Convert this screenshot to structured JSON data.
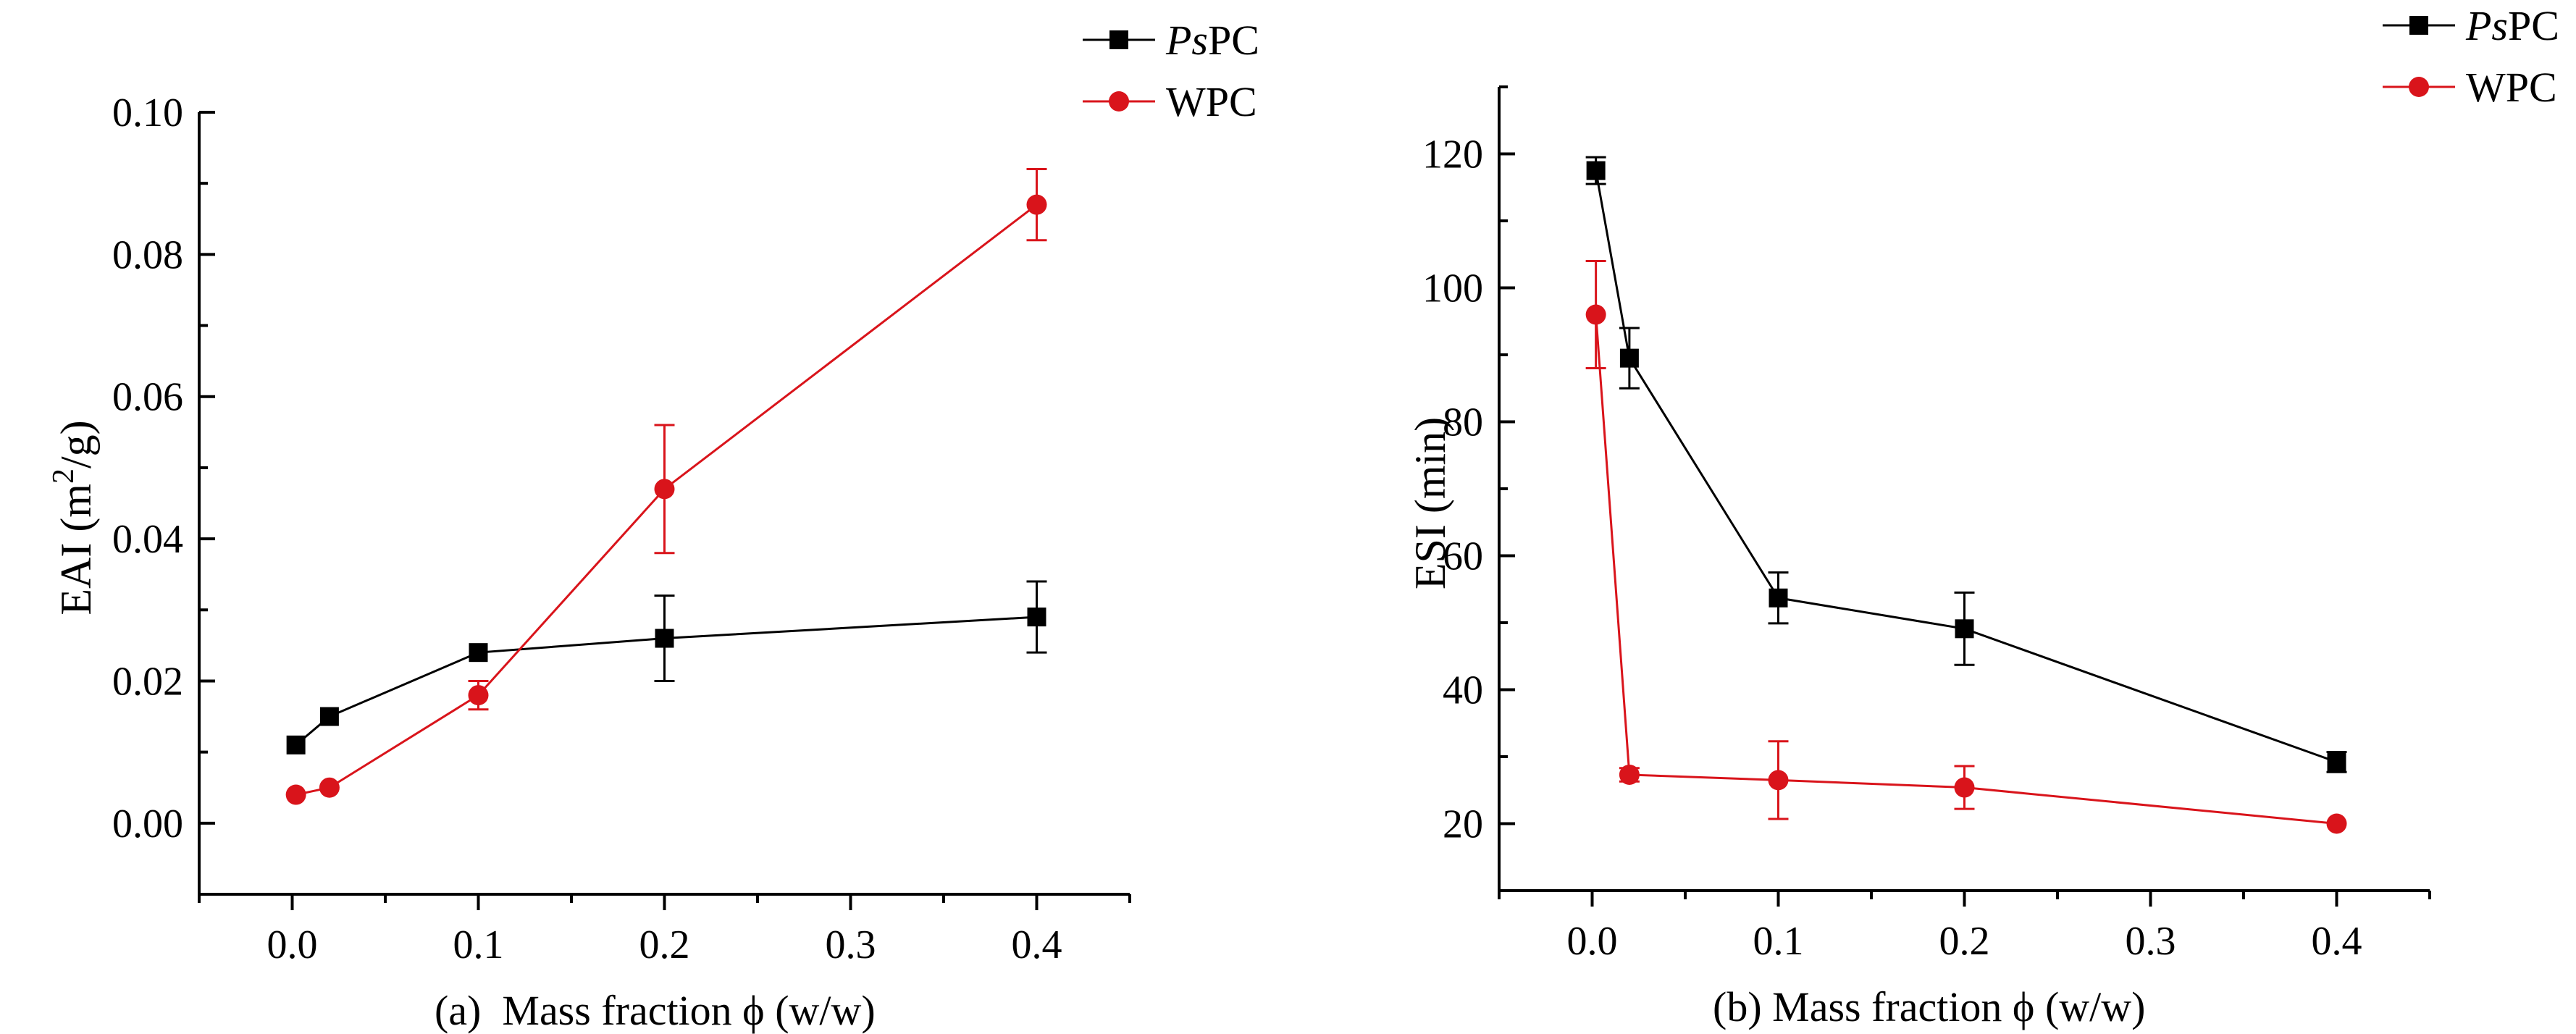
{
  "chart_data": [
    {
      "type": "line",
      "caption": "(a)  Mass fraction ϕ (w/w)",
      "xlabel": "Mass fraction ϕ (w/w)",
      "ylabel": "EAI (m2/g)",
      "ylabel_parts": {
        "main": "EAI (m",
        "sup": "2",
        "tail": "/g)"
      },
      "xlim": [
        -0.05,
        0.45
      ],
      "ylim": [
        -0.01,
        0.1
      ],
      "xticks": [
        0.0,
        0.1,
        0.2,
        0.3,
        0.4
      ],
      "xtick_labels": [
        "0.0",
        "0.1",
        "0.2",
        "0.3",
        "0.4"
      ],
      "yticks": [
        0.0,
        0.02,
        0.04,
        0.06,
        0.08,
        0.1
      ],
      "ytick_labels": [
        "0.00",
        "0.02",
        "0.04",
        "0.06",
        "0.08",
        "0.10"
      ],
      "legend_position": "top-right",
      "series": [
        {
          "name": "PsPC",
          "name_parts": {
            "italic": "Ps",
            "normal": "PC"
          },
          "color": "#000000",
          "marker": "square",
          "x": [
            0.002,
            0.02,
            0.1,
            0.2,
            0.4
          ],
          "y": [
            0.011,
            0.015,
            0.024,
            0.026,
            0.029
          ],
          "err": [
            0,
            0,
            0,
            0.006,
            0.005
          ]
        },
        {
          "name": "WPC",
          "color": "#d9141b",
          "marker": "circle",
          "x": [
            0.002,
            0.02,
            0.1,
            0.2,
            0.4
          ],
          "y": [
            0.004,
            0.005,
            0.018,
            0.047,
            0.087
          ],
          "err": [
            0,
            0,
            0.002,
            0.009,
            0.005
          ]
        }
      ]
    },
    {
      "type": "line",
      "caption": "(b) Mass fraction ϕ (w/w)",
      "xlabel": "Mass fraction ϕ (w/w)",
      "ylabel": "ESI (min)",
      "xlim": [
        -0.05,
        0.45
      ],
      "ylim": [
        10,
        130
      ],
      "xticks": [
        0.0,
        0.1,
        0.2,
        0.3,
        0.4
      ],
      "xtick_labels": [
        "0.0",
        "0.1",
        "0.2",
        "0.3",
        "0.4"
      ],
      "yticks": [
        20,
        40,
        60,
        80,
        100,
        120
      ],
      "ytick_labels": [
        "20",
        "40",
        "60",
        "80",
        "100",
        "120"
      ],
      "legend_position": "top-right",
      "series": [
        {
          "name": "PsPC",
          "name_parts": {
            "italic": "Ps",
            "normal": "PC"
          },
          "color": "#000000",
          "marker": "square",
          "x": [
            0.002,
            0.02,
            0.1,
            0.2,
            0.4
          ],
          "y": [
            117.5,
            89.5,
            53.7,
            49.1,
            29.2
          ],
          "err": [
            2,
            4.5,
            3.8,
            5.4,
            1.5
          ]
        },
        {
          "name": "WPC",
          "color": "#d9141b",
          "marker": "circle",
          "x": [
            0.002,
            0.02,
            0.1,
            0.2,
            0.4
          ],
          "y": [
            96,
            27.3,
            26.5,
            25.4,
            20
          ],
          "err": [
            8,
            1,
            5.8,
            3.2,
            0
          ]
        }
      ]
    }
  ]
}
